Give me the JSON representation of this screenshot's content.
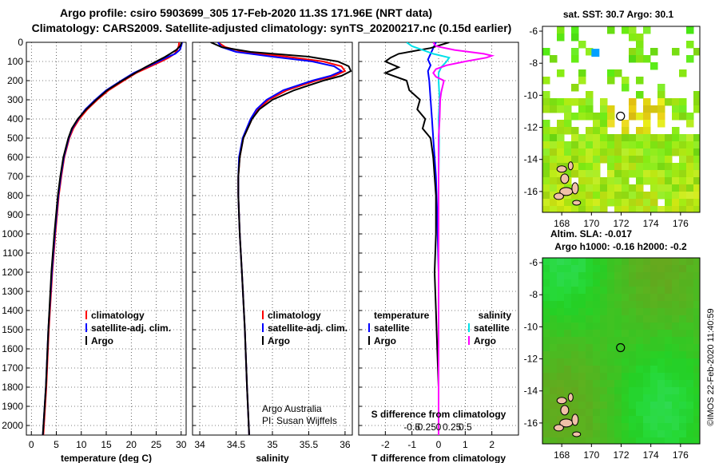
{
  "header": {
    "line1": "Argo profile: csiro 5903699_305 17-Feb-2020 11.3S 171.96E (NRT data)",
    "line2": "Climatology: CARS2009. Satellite-adjusted climatology: synTS_20200217.nc (0.15d earlier)"
  },
  "footer": {
    "credit": "©IMOS 22-Feb-2020 11:40:59"
  },
  "colors": {
    "climatology": "#ff0000",
    "satellite_adj": "#0000ff",
    "argo": "#000000",
    "salinity_sat": "#00e0e8",
    "salinity_argo": "#ff00ff"
  },
  "chart_data": [
    {
      "id": "temperature",
      "type": "line",
      "xlabel": "temperature (deg C)",
      "ylim": [
        2050,
        0
      ],
      "xlim": [
        -1,
        31
      ],
      "xticks": [
        0,
        5,
        10,
        15,
        20,
        25,
        30
      ],
      "xtick_labels": [
        "0",
        "5",
        "10",
        "15",
        "20",
        "25",
        "30"
      ],
      "yticks": [
        0,
        100,
        200,
        300,
        400,
        500,
        600,
        700,
        800,
        900,
        1000,
        1100,
        1200,
        1300,
        1400,
        1500,
        1600,
        1700,
        1800,
        1900,
        2000
      ],
      "legend": [
        "climatology",
        "satellite-adj. clim.",
        "Argo"
      ],
      "series": [
        {
          "name": "climatology",
          "color": "#ff0000",
          "depth": [
            0,
            20,
            40,
            60,
            80,
            100,
            130,
            160,
            200,
            250,
            300,
            350,
            400,
            450,
            500,
            600,
            700,
            800,
            1000,
            1200,
            1500,
            1800,
            2050
          ],
          "values": [
            29.6,
            29.5,
            29.2,
            28.7,
            27.5,
            26.0,
            23.5,
            21.0,
            18.5,
            15.5,
            13.2,
            11.2,
            9.6,
            8.4,
            7.6,
            6.6,
            6.0,
            5.5,
            4.8,
            4.2,
            3.5,
            3.0,
            2.4
          ]
        },
        {
          "name": "satellite-adj. clim.",
          "color": "#0000ff",
          "depth": [
            0,
            20,
            40,
            60,
            80,
            100,
            130,
            160,
            200,
            250,
            300,
            350,
            400,
            450,
            500,
            600,
            700,
            800,
            1000,
            1200,
            1500,
            1800,
            2050
          ],
          "values": [
            30.2,
            30.0,
            29.7,
            28.8,
            27.0,
            25.5,
            23.0,
            20.5,
            18.0,
            15.0,
            12.8,
            10.8,
            9.4,
            8.2,
            7.5,
            6.5,
            5.9,
            5.4,
            4.7,
            4.1,
            3.4,
            2.9,
            2.3
          ]
        },
        {
          "name": "Argo",
          "color": "#000000",
          "depth": [
            0,
            20,
            40,
            60,
            80,
            100,
            130,
            160,
            200,
            250,
            300,
            350,
            400,
            450,
            500,
            600,
            700,
            800,
            1000,
            1200,
            1500,
            1800,
            2050
          ],
          "values": [
            30.1,
            29.8,
            29.0,
            27.8,
            26.5,
            25.0,
            22.8,
            20.8,
            18.2,
            15.2,
            13.0,
            11.0,
            9.3,
            8.1,
            7.4,
            6.4,
            5.8,
            5.3,
            4.6,
            4.0,
            3.4,
            2.9,
            2.3
          ]
        }
      ]
    },
    {
      "id": "salinity",
      "type": "line",
      "xlabel": "salinity",
      "ylim": [
        2050,
        0
      ],
      "xlim": [
        33.9,
        36.1
      ],
      "xticks": [
        34,
        34.5,
        35,
        35.5,
        36
      ],
      "xtick_labels": [
        "34",
        "34.5",
        "35",
        "35.5",
        "36"
      ],
      "legend": [
        "climatology",
        "satellite-adj. clim.",
        "Argo"
      ],
      "annotation": [
        "Argo Australia",
        "PI: Susan Wijffels"
      ],
      "series": [
        {
          "name": "climatology",
          "color": "#ff0000",
          "depth": [
            0,
            25,
            50,
            75,
            100,
            125,
            150,
            175,
            200,
            250,
            300,
            350,
            400,
            500,
            600,
            700,
            800,
            1000,
            1200,
            1500,
            1800,
            2050
          ],
          "values": [
            34.25,
            34.35,
            34.6,
            35.2,
            35.7,
            35.95,
            36.0,
            35.85,
            35.6,
            35.2,
            34.95,
            34.8,
            34.72,
            34.6,
            34.55,
            34.53,
            34.53,
            34.55,
            34.58,
            34.62,
            34.65,
            34.68
          ]
        },
        {
          "name": "satellite-adj. clim.",
          "color": "#0000ff",
          "depth": [
            0,
            25,
            50,
            75,
            100,
            125,
            150,
            175,
            200,
            250,
            300,
            350,
            400,
            500,
            600,
            700,
            800,
            1000,
            1200,
            1500,
            1800,
            2050
          ],
          "values": [
            34.25,
            34.3,
            34.5,
            35.0,
            35.55,
            35.85,
            35.95,
            35.8,
            35.55,
            35.15,
            34.92,
            34.78,
            34.7,
            34.59,
            34.54,
            34.53,
            34.53,
            34.55,
            34.58,
            34.62,
            34.65,
            34.68
          ]
        },
        {
          "name": "Argo",
          "color": "#000000",
          "depth": [
            0,
            25,
            50,
            75,
            100,
            125,
            150,
            175,
            200,
            250,
            300,
            350,
            400,
            500,
            600,
            700,
            800,
            1000,
            1200,
            1500,
            1800,
            2050
          ],
          "values": [
            34.15,
            34.3,
            34.7,
            35.5,
            35.9,
            36.05,
            36.08,
            35.95,
            35.7,
            35.3,
            35.0,
            34.82,
            34.72,
            34.6,
            34.55,
            34.53,
            34.53,
            34.55,
            34.58,
            34.62,
            34.65,
            34.68
          ]
        }
      ]
    },
    {
      "id": "difference",
      "type": "line",
      "xlabel": "T difference from climatology",
      "xlabel2": "S difference from climatology",
      "ylim": [
        2050,
        0
      ],
      "xlim": [
        -3,
        3
      ],
      "xticks": [
        -2,
        -1,
        0,
        1,
        2
      ],
      "xtick_labels": [
        "-2",
        "-1",
        "0",
        "1",
        "2"
      ],
      "sticks": [
        -0.5,
        -0.25,
        0,
        0.25,
        0.5
      ],
      "stick_labels": [
        "-0.5",
        "-0.25",
        "0",
        "0.25",
        "0.5"
      ],
      "legend_titles": [
        "temperature",
        "salinity"
      ],
      "legend": [
        "satellite",
        "Argo",
        "satellite",
        "Argo"
      ],
      "series": [
        {
          "name": "T satellite",
          "color": "#0000ff",
          "depth": [
            0,
            30,
            60,
            90,
            120,
            150,
            200,
            300,
            400,
            500,
            600,
            700,
            900,
            1200,
            1600,
            2050
          ],
          "values": [
            -0.1,
            -0.2,
            -0.3,
            -0.4,
            -0.3,
            -0.4,
            -0.35,
            -0.3,
            -0.25,
            -0.2,
            -0.15,
            -0.1,
            -0.05,
            0.0,
            0.0,
            0.0
          ]
        },
        {
          "name": "T Argo",
          "color": "#000000",
          "depth": [
            0,
            30,
            60,
            80,
            100,
            130,
            160,
            200,
            250,
            300,
            350,
            400,
            450,
            500,
            600,
            700,
            800,
            1000,
            1200,
            1400,
            1600,
            1800,
            2050
          ],
          "values": [
            0.4,
            -0.3,
            -1.5,
            -1.8,
            -2.0,
            -1.5,
            -2.0,
            -1.2,
            -1.1,
            -0.7,
            -0.8,
            -0.5,
            -0.6,
            -0.3,
            -0.2,
            -0.15,
            -0.1,
            -0.1,
            -0.15,
            -0.1,
            -0.05,
            0.0,
            0.0
          ]
        },
        {
          "name": "S satellite",
          "color": "#00e0e8",
          "depth": [
            0,
            20,
            40,
            60,
            80,
            100,
            130,
            160,
            200,
            300,
            400,
            500,
            700,
            900,
            1200,
            1600,
            2050
          ],
          "values": [
            -0.6,
            -0.5,
            -0.3,
            -0.1,
            0.2,
            0.15,
            0.05,
            0.0,
            0.0,
            0.02,
            0.0,
            0.01,
            0.0,
            0.0,
            0.0,
            0.0,
            0.0
          ]
        },
        {
          "name": "S Argo",
          "color": "#ff00ff",
          "depth": [
            0,
            20,
            40,
            60,
            70,
            80,
            100,
            120,
            140,
            160,
            180,
            200,
            260,
            300,
            400,
            500,
            700,
            1000,
            1400,
            1800,
            2050
          ],
          "values": [
            -0.1,
            -0.05,
            0.3,
            0.85,
            1.0,
            0.9,
            0.5,
            0.15,
            -0.05,
            -0.1,
            -0.05,
            0.1,
            0.05,
            0.03,
            0.02,
            0.0,
            0.0,
            0.0,
            0.0,
            0.0,
            0.0
          ]
        }
      ]
    }
  ],
  "maps": [
    {
      "id": "sst-map",
      "title": "sat. SST: 30.7 Argo: 30.1",
      "xticks": [
        168,
        170,
        172,
        174,
        176
      ],
      "yticks": [
        -6,
        -8,
        -10,
        -12,
        -14,
        -16
      ],
      "lon_range": [
        166.7,
        177.3
      ],
      "lat_range": [
        -17.3,
        -5.7
      ],
      "argo_position": {
        "lon": 171.96,
        "lat": -11.3
      }
    },
    {
      "id": "sla-map",
      "title": "Altim. SLA: -0.017",
      "subtitle": "Argo h1000: -0.16 h2000: -0.2",
      "xticks": [
        168,
        170,
        172,
        174,
        176
      ],
      "yticks": [
        -6,
        -8,
        -10,
        -12,
        -14,
        -16
      ],
      "lon_range": [
        166.7,
        177.3
      ],
      "lat_range": [
        -17.3,
        -5.7
      ],
      "argo_position": {
        "lon": 171.96,
        "lat": -11.3
      }
    }
  ]
}
